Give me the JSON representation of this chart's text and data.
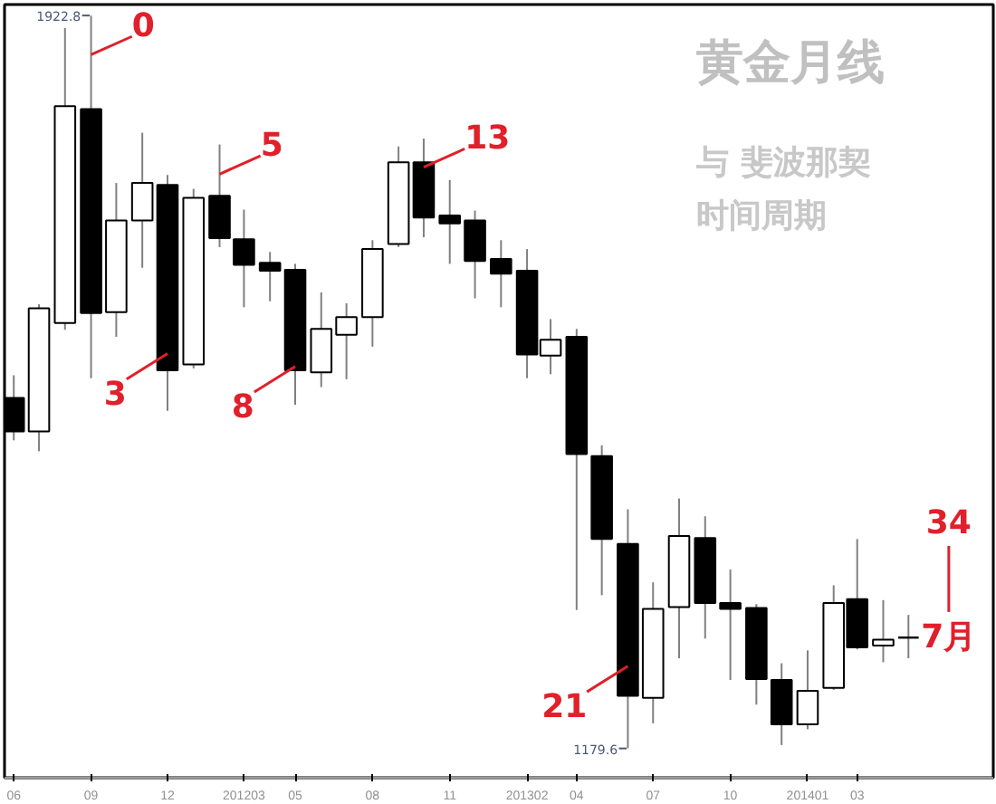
{
  "chart_data": {
    "type": "candlestick",
    "title": "黄金月线",
    "subtitle": "与 斐波那契时间周期",
    "color": "#000000",
    "x": [
      "2011-06",
      "2011-07",
      "2011-08",
      "2011-09",
      "2011-10",
      "2011-11",
      "2011-12",
      "2012-01",
      "2012-02",
      "2012-03",
      "2012-04",
      "2012-05",
      "2012-06",
      "2012-07",
      "2012-08",
      "2012-09",
      "2012-10",
      "2012-11",
      "2012-12",
      "2013-01",
      "2013-02",
      "2013-03",
      "2013-04",
      "2013-05",
      "2013-06",
      "2013-07",
      "2013-08",
      "2013-09",
      "2013-10",
      "2013-11",
      "2013-12",
      "2014-01",
      "2014-02",
      "2014-03",
      "2014-04",
      "2014-05"
    ],
    "ohlc": [
      [
        1535,
        1558,
        1492,
        1501
      ],
      [
        1501,
        1630,
        1481,
        1626
      ],
      [
        1611,
        1910,
        1604,
        1831
      ],
      [
        1828,
        1922.8,
        1555,
        1621
      ],
      [
        1622,
        1753,
        1597,
        1715
      ],
      [
        1715,
        1804,
        1667,
        1753
      ],
      [
        1751,
        1761,
        1522,
        1563
      ],
      [
        1569,
        1747,
        1565,
        1738
      ],
      [
        1740,
        1792,
        1688,
        1697
      ],
      [
        1696,
        1726,
        1627,
        1670
      ],
      [
        1672,
        1683,
        1633,
        1664
      ],
      [
        1665,
        1671,
        1528,
        1563
      ],
      [
        1561,
        1642,
        1546,
        1605
      ],
      [
        1599,
        1631,
        1554,
        1617
      ],
      [
        1617,
        1695,
        1587,
        1686
      ],
      [
        1691,
        1790,
        1688,
        1774
      ],
      [
        1774,
        1798,
        1698,
        1718
      ],
      [
        1720,
        1756,
        1671,
        1712
      ],
      [
        1715,
        1725,
        1636,
        1674
      ],
      [
        1676,
        1695,
        1627,
        1661
      ],
      [
        1664,
        1686,
        1555,
        1579
      ],
      [
        1578,
        1615,
        1559,
        1594
      ],
      [
        1597,
        1605,
        1320,
        1478
      ],
      [
        1476,
        1487,
        1335,
        1392
      ],
      [
        1387,
        1422,
        1179.6,
        1233
      ],
      [
        1231,
        1348,
        1205,
        1321
      ],
      [
        1323,
        1433,
        1271,
        1395
      ],
      [
        1393,
        1415,
        1291,
        1327
      ],
      [
        1327,
        1361,
        1249,
        1321
      ],
      [
        1322,
        1326,
        1224,
        1250
      ],
      [
        1249,
        1266,
        1183,
        1204
      ],
      [
        1204,
        1279,
        1199,
        1238
      ],
      [
        1241,
        1345,
        1239,
        1327
      ],
      [
        1331,
        1392,
        1280,
        1282
      ],
      [
        1284,
        1330,
        1267,
        1290
      ],
      [
        1292,
        1315,
        1271,
        1292
      ]
    ],
    "value_labels": [
      null,
      null,
      null,
      "1922.8",
      null,
      null,
      null,
      null,
      null,
      null,
      null,
      null,
      null,
      null,
      null,
      null,
      null,
      null,
      null,
      null,
      null,
      null,
      null,
      null,
      "1179.6",
      null,
      null,
      null,
      null,
      null,
      null,
      null,
      null,
      null,
      null,
      null
    ],
    "xlim": [
      "2011-05-21",
      "2014-08-10"
    ],
    "xticks": [
      {
        "value": "2011-06",
        "label": "06"
      },
      {
        "value": "2011-09",
        "label": "09"
      },
      {
        "value": "2011-12",
        "label": "12"
      },
      {
        "value": "2012-03",
        "label": "201203"
      },
      {
        "value": "2012-05",
        "label": "05"
      },
      {
        "value": "2012-08",
        "label": "08"
      },
      {
        "value": "2012-11",
        "label": "11"
      },
      {
        "value": "2013-02",
        "label": "201302"
      },
      {
        "value": "2013-04",
        "label": "04"
      },
      {
        "value": "2013-07",
        "label": "07"
      },
      {
        "value": "2013-10",
        "label": "10"
      },
      {
        "value": "2014-01",
        "label": "201401"
      },
      {
        "value": "2014-03",
        "label": "03"
      }
    ],
    "annotations": [
      {
        "text": "0",
        "x": "2011-09",
        "y": 1883
      },
      {
        "text": "3",
        "x": "2011-12",
        "y": 1580
      },
      {
        "text": "5",
        "x": "2012-02",
        "y": 1762
      },
      {
        "text": "8",
        "x": "2012-05",
        "y": 1567
      },
      {
        "text": "13",
        "x": "2012-10",
        "y": 1769
      },
      {
        "text": "21",
        "x": "2013-06",
        "y": 1263
      },
      "34",
      "7月"
    ]
  }
}
